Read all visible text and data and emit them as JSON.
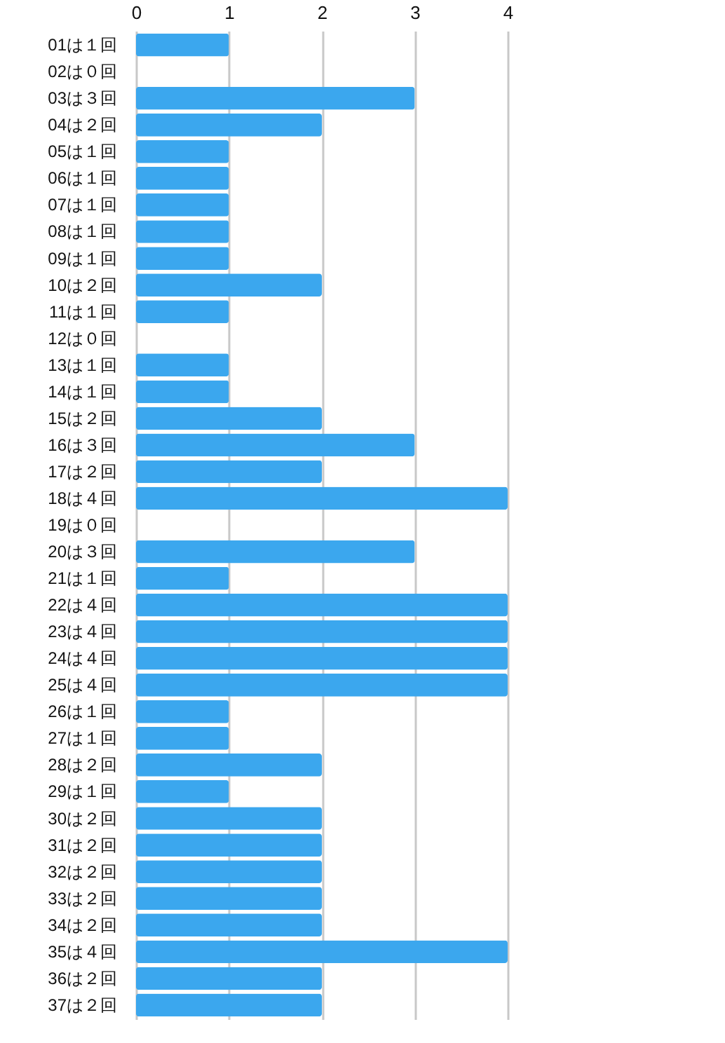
{
  "chart_data": {
    "type": "bar",
    "orientation": "horizontal",
    "categories": [
      "01は１回",
      "02は０回",
      "03は３回",
      "04は２回",
      "05は１回",
      "06は１回",
      "07は１回",
      "08は１回",
      "09は１回",
      "10は２回",
      "11は１回",
      "12は０回",
      "13は１回",
      "14は１回",
      "15は２回",
      "16は３回",
      "17は２回",
      "18は４回",
      "19は０回",
      "20は３回",
      "21は１回",
      "22は４回",
      "23は４回",
      "24は４回",
      "25は４回",
      "26は１回",
      "27は１回",
      "28は２回",
      "29は１回",
      "30は２回",
      "31は２回",
      "32は２回",
      "33は２回",
      "34は２回",
      "35は４回",
      "36は２回",
      "37は２回"
    ],
    "values": [
      1,
      0,
      3,
      2,
      1,
      1,
      1,
      1,
      1,
      2,
      1,
      0,
      1,
      1,
      2,
      3,
      2,
      4,
      0,
      3,
      1,
      4,
      4,
      4,
      4,
      1,
      1,
      2,
      1,
      2,
      2,
      2,
      2,
      2,
      4,
      2,
      2
    ],
    "color": "#3ba7ee",
    "xlim": [
      0,
      4
    ],
    "xticks": [
      0,
      1,
      2,
      3,
      4
    ],
    "grid": "x"
  }
}
